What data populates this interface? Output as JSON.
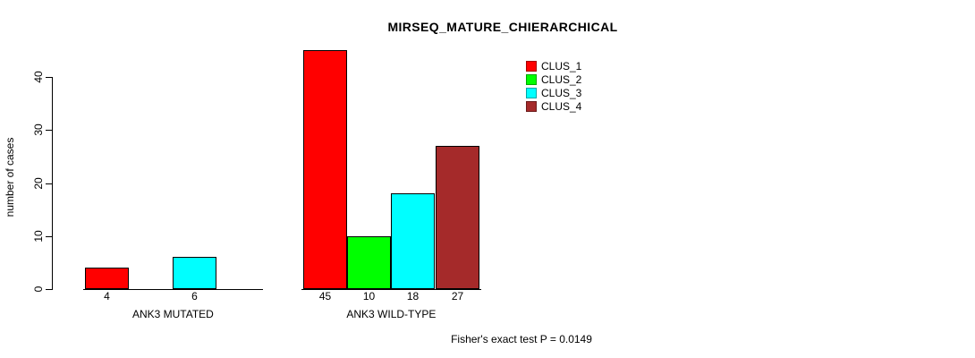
{
  "title": "MIRSEQ_MATURE_CHIERARCHICAL",
  "footer": "Fisher's exact test P = 0.0149",
  "y_axis": {
    "label": "number of cases",
    "ticks": [
      0,
      10,
      20,
      30,
      40
    ]
  },
  "legend": {
    "items": [
      {
        "label": "CLUS_1",
        "color": "#FF0000"
      },
      {
        "label": "CLUS_2",
        "color": "#00FF00"
      },
      {
        "label": "CLUS_3",
        "color": "#00FFFF"
      },
      {
        "label": "CLUS_4",
        "color": "#A52A2A"
      }
    ]
  },
  "chart_data": {
    "type": "bar",
    "title": "MIRSEQ_MATURE_CHIERARCHICAL",
    "xlabel": "",
    "ylabel": "number of cases",
    "ylim": [
      0,
      45
    ],
    "grid": false,
    "legend_position": "top-right",
    "categories": [
      "ANK3 MUTATED",
      "ANK3 WILD-TYPE"
    ],
    "series": [
      {
        "name": "CLUS_1",
        "color": "#FF0000",
        "values": [
          4,
          45
        ]
      },
      {
        "name": "CLUS_2",
        "color": "#00FF00",
        "values": [
          0,
          10
        ]
      },
      {
        "name": "CLUS_3",
        "color": "#00FFFF",
        "values": [
          6,
          18
        ]
      },
      {
        "name": "CLUS_4",
        "color": "#A52A2A",
        "values": [
          0,
          27
        ]
      }
    ],
    "bar_value_labels_shown_only_when_nonzero": true,
    "annotation": "Fisher's exact test P = 0.0149"
  }
}
